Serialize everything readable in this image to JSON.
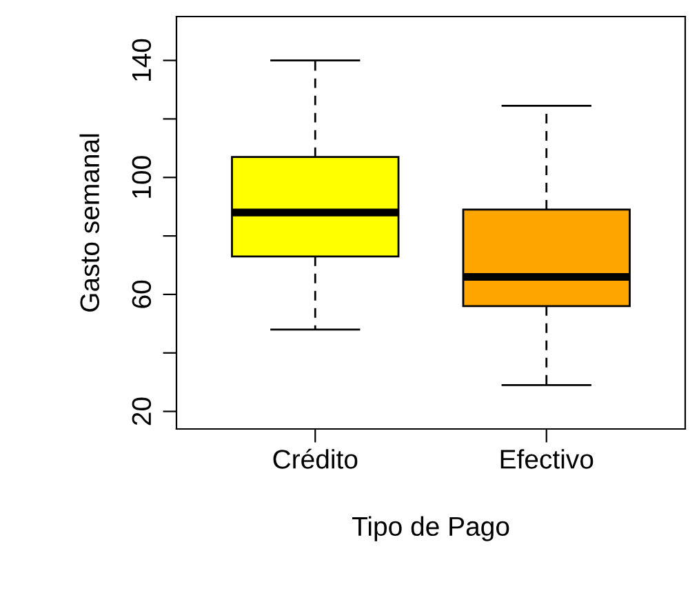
{
  "chart_data": {
    "type": "box",
    "xlabel": "Tipo de Pago",
    "ylabel": "Gasto semanal",
    "categories": [
      "Crédito",
      "Efectivo"
    ],
    "boxes": [
      {
        "low": 48,
        "q1": 73,
        "median": 88,
        "q3": 107,
        "high": 140
      },
      {
        "low": 29,
        "q1": 56,
        "median": 66,
        "q3": 89,
        "high": 124.5
      }
    ],
    "colors": [
      "#ffff00",
      "#ffa500"
    ],
    "ylim": [
      14,
      155
    ],
    "yticks": [
      20,
      {
        "value": 40,
        "label": null
      },
      60,
      {
        "value": 80,
        "label": null
      },
      100,
      {
        "value": 120,
        "label": null
      },
      140
    ],
    "grid": false
  }
}
